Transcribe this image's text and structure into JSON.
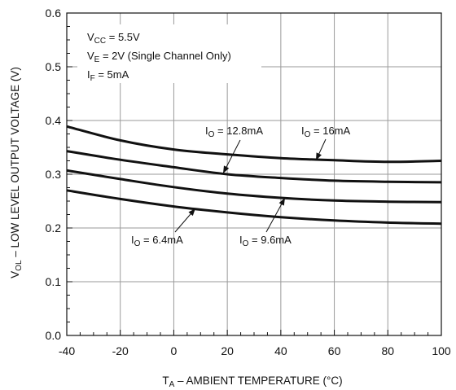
{
  "chart_data": {
    "type": "line",
    "xlabel": {
      "main": "T",
      "sub": "A",
      "rest": " – AMBIENT TEMPERATURE (°C)"
    },
    "ylabel": {
      "main": "V",
      "sub": "OL",
      "rest": " – LOW LEVEL OUTPUT VOLTAGE (V)"
    },
    "xlim": [
      -40,
      100
    ],
    "ylim": [
      0,
      0.6
    ],
    "xticks": [
      "-40",
      "-20",
      "0",
      "20",
      "40",
      "60",
      "80",
      "100"
    ],
    "yticks": [
      "0.0",
      "0.1",
      "0.2",
      "0.3",
      "0.4",
      "0.5",
      "0.6"
    ],
    "grid": true,
    "conditions": [
      {
        "main": "V",
        "sub": "CC",
        "rest": " = 5.5V"
      },
      {
        "main": "V",
        "sub": "E",
        "rest": " = 2V (Single Channel Only)"
      },
      {
        "main": "I",
        "sub": "F",
        "rest": " = 5mA"
      }
    ],
    "series": [
      {
        "name": {
          "main": "I",
          "sub": "O",
          "rest": " = 16mA"
        },
        "x": [
          -40,
          -20,
          0,
          20,
          40,
          60,
          80,
          100
        ],
        "y": [
          0.389,
          0.363,
          0.346,
          0.337,
          0.33,
          0.326,
          0.323,
          0.325
        ]
      },
      {
        "name": {
          "main": "I",
          "sub": "O",
          "rest": " = 12.8mA"
        },
        "x": [
          -40,
          -20,
          0,
          20,
          40,
          60,
          80,
          100
        ],
        "y": [
          0.343,
          0.327,
          0.313,
          0.3,
          0.293,
          0.288,
          0.286,
          0.285
        ]
      },
      {
        "name": {
          "main": "I",
          "sub": "O",
          "rest": " = 9.6mA"
        },
        "x": [
          -40,
          -20,
          0,
          20,
          40,
          60,
          80,
          100
        ],
        "y": [
          0.307,
          0.291,
          0.276,
          0.264,
          0.256,
          0.251,
          0.249,
          0.248
        ]
      },
      {
        "name": {
          "main": "I",
          "sub": "O",
          "rest": " = 6.4mA"
        },
        "x": [
          -40,
          -20,
          0,
          20,
          40,
          60,
          80,
          100
        ],
        "y": [
          0.27,
          0.254,
          0.24,
          0.229,
          0.22,
          0.214,
          0.21,
          0.208
        ]
      }
    ]
  }
}
